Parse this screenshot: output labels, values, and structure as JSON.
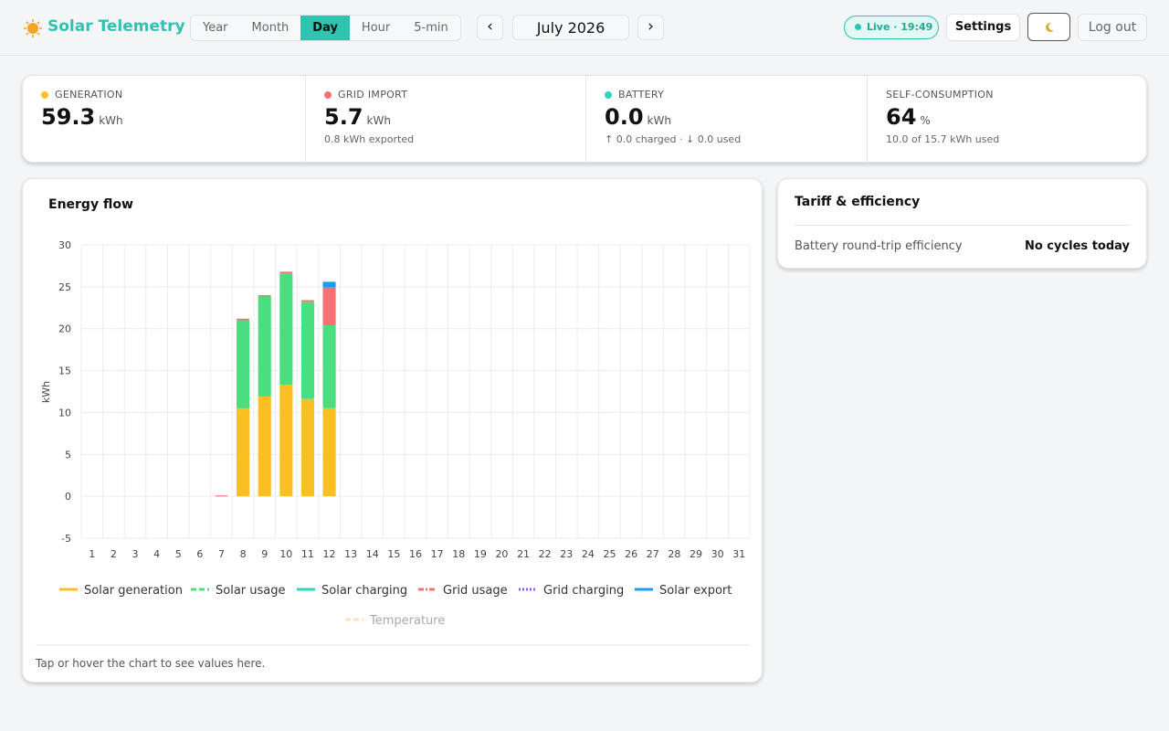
{
  "header": {
    "brand": "Solar Telemetry",
    "tabs": [
      "Year",
      "Month",
      "Day",
      "Hour",
      "5-min"
    ],
    "active_tab": 2,
    "prev": "‹",
    "next": "›",
    "period": "July 2026",
    "live": "Live · 19:49",
    "settings": "Settings",
    "logout": "Log out"
  },
  "stats": [
    {
      "label": "GENERATION",
      "value": "59.3",
      "unit": "kWh",
      "sub": "",
      "color": "#fbbf24"
    },
    {
      "label": "GRID IMPORT",
      "value": "5.7",
      "unit": "kWh",
      "sub": "0.8 kWh exported",
      "color": "#f87171"
    },
    {
      "label": "BATTERY",
      "value": "0.0",
      "unit": "kWh",
      "sub": "↑ 0.0 charged · ↓ 0.0 used",
      "color": "#2dd4bf"
    },
    {
      "label": "SELF-CONSUMPTION",
      "value": "64",
      "unit": "%",
      "sub": "10.0 of 15.7 kWh used",
      "color": ""
    }
  ],
  "tariff": {
    "title": "Tariff & efficiency",
    "rows": [
      [
        "Battery round-trip efficiency",
        "No cycles today"
      ]
    ]
  },
  "chart_data": {
    "type": "stacked-bar",
    "title": "Energy flow",
    "ylabel": "kWh",
    "categories": [
      "1",
      "2",
      "3",
      "4",
      "5",
      "6",
      "7",
      "8",
      "9",
      "10",
      "11",
      "12",
      "13",
      "14",
      "15",
      "16",
      "17",
      "18",
      "19",
      "20",
      "21",
      "22",
      "23",
      "24",
      "25",
      "26",
      "27",
      "28",
      "29",
      "30",
      "31"
    ],
    "series": [
      {
        "name": "Solar generation",
        "color": "#fbbf24",
        "style": "solid",
        "values": [
          null,
          null,
          null,
          null,
          null,
          null,
          null,
          10.5,
          11.9,
          13.3,
          11.6,
          10.5,
          null,
          null,
          null,
          null,
          null,
          null,
          null,
          null,
          null,
          null,
          null,
          null,
          null,
          null,
          null,
          null,
          null,
          null,
          null
        ]
      },
      {
        "name": "Solar usage",
        "color": "#4ade80",
        "style": "dashed",
        "values": [
          null,
          null,
          null,
          null,
          null,
          null,
          null,
          10.5,
          12.0,
          13.3,
          11.6,
          9.9,
          null,
          null,
          null,
          null,
          null,
          null,
          null,
          null,
          null,
          null,
          null,
          null,
          null,
          null,
          null,
          null,
          null,
          null,
          null
        ]
      },
      {
        "name": "Solar charging",
        "color": "#2dd4bf",
        "style": "solid",
        "values": [
          null,
          null,
          null,
          null,
          null,
          null,
          null,
          null,
          null,
          null,
          null,
          null,
          null,
          null,
          null,
          null,
          null,
          null,
          null,
          null,
          null,
          null,
          null,
          null,
          null,
          null,
          null,
          null,
          null,
          null,
          null
        ]
      },
      {
        "name": "Grid usage",
        "color": "#f87171",
        "style": "dashdot",
        "values": [
          null,
          null,
          null,
          null,
          null,
          null,
          0.1,
          0.2,
          0.1,
          0.2,
          0.2,
          4.5,
          null,
          null,
          null,
          null,
          null,
          null,
          null,
          null,
          null,
          null,
          null,
          null,
          null,
          null,
          null,
          null,
          null,
          null,
          null
        ]
      },
      {
        "name": "Grid charging",
        "color": "#8b5cf6",
        "style": "dotted",
        "values": [
          null,
          null,
          null,
          null,
          null,
          null,
          null,
          null,
          null,
          null,
          null,
          null,
          null,
          null,
          null,
          null,
          null,
          null,
          null,
          null,
          null,
          null,
          null,
          null,
          null,
          null,
          null,
          null,
          null,
          null,
          null
        ]
      },
      {
        "name": "Solar export",
        "color": "#1d9bf0",
        "style": "solid",
        "values": [
          null,
          null,
          null,
          null,
          null,
          null,
          null,
          null,
          null,
          null,
          null,
          0.7,
          null,
          null,
          null,
          null,
          null,
          null,
          null,
          null,
          null,
          null,
          null,
          null,
          null,
          null,
          null,
          null,
          null,
          null,
          null
        ]
      },
      {
        "name": "Temperature",
        "color": "#fdba74",
        "style": "dashed",
        "hidden": true,
        "values": [
          null,
          null,
          null,
          null,
          null,
          null,
          null,
          null,
          null,
          null,
          null,
          null,
          null,
          null,
          null,
          null,
          null,
          null,
          null,
          null,
          null,
          null,
          null,
          null,
          null,
          null,
          null,
          null,
          null,
          null,
          null
        ]
      }
    ],
    "ylim": [
      -5,
      30
    ],
    "yticks": [
      -5,
      0,
      5,
      10,
      15,
      20,
      25,
      30
    ],
    "grid": true,
    "footer": "Tap or hover the chart to see values here."
  }
}
